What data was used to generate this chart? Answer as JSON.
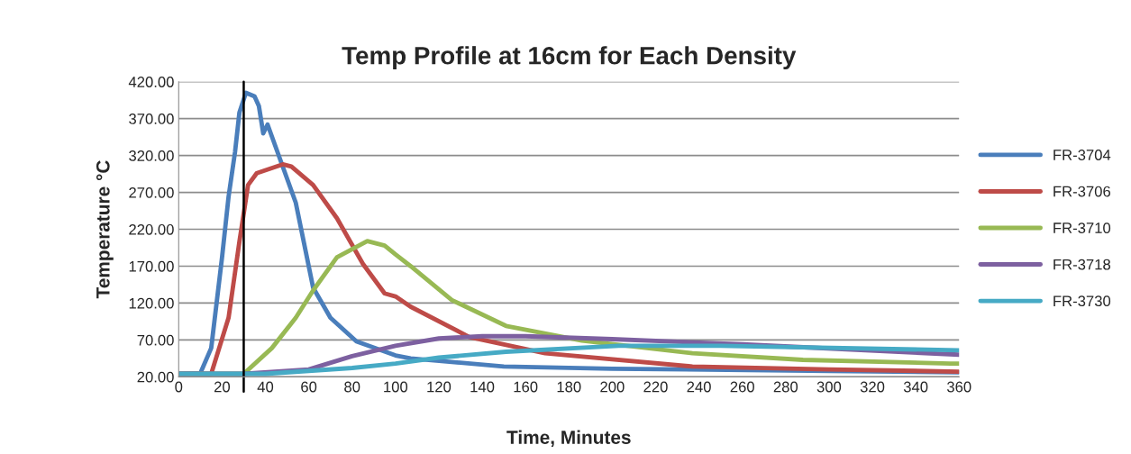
{
  "chart_data": {
    "type": "line",
    "title": "Temp Profile at 16cm for Each Density",
    "xlabel": "Time, Minutes",
    "ylabel": "Temperature °C",
    "xlim": [
      0,
      360
    ],
    "xticks": [
      0,
      20,
      40,
      60,
      80,
      100,
      120,
      140,
      160,
      180,
      200,
      220,
      240,
      260,
      280,
      300,
      320,
      340,
      360
    ],
    "ylim": [
      20,
      420
    ],
    "yticks": [
      {
        "value": 20,
        "label": "20.00"
      },
      {
        "value": 70,
        "label": "70.00"
      },
      {
        "value": 120,
        "label": "120.00"
      },
      {
        "value": 170,
        "label": "170.00"
      },
      {
        "value": 220,
        "label": "220.00"
      },
      {
        "value": 270,
        "label": "270.00"
      },
      {
        "value": 320,
        "label": "320.00"
      },
      {
        "value": 370,
        "label": "370.00"
      },
      {
        "value": 420,
        "label": "420.00"
      }
    ],
    "grid": "y",
    "legend": "right",
    "marker": "none",
    "line_style": "solid",
    "ref_lines": [
      {
        "axis": "x",
        "value": 30,
        "color": "#000000"
      }
    ],
    "series": [
      {
        "name": "FR-3704",
        "color": "#4a7ebb",
        "x": [
          0,
          10,
          15,
          20,
          23,
          26,
          28,
          31,
          35,
          37,
          39,
          41,
          54,
          62,
          70,
          82,
          100,
          107,
          150,
          200,
          300,
          360
        ],
        "values": [
          24,
          25,
          59,
          182,
          264,
          325,
          378,
          405,
          400,
          387,
          350,
          362,
          256,
          141,
          100,
          68,
          49,
          45,
          34,
          31,
          28,
          26
        ]
      },
      {
        "name": "FR-3706",
        "color": "#be4b48",
        "x": [
          0,
          15,
          23,
          28,
          32,
          36,
          48,
          52,
          62,
          73,
          85,
          95,
          100,
          107,
          134,
          169,
          237,
          300,
          360
        ],
        "values": [
          24,
          24,
          100,
          203,
          280,
          296,
          308,
          305,
          280,
          235,
          173,
          133,
          129,
          115,
          74,
          52,
          34,
          30,
          27
        ]
      },
      {
        "name": "FR-3710",
        "color": "#98b954",
        "x": [
          0,
          30,
          43,
          54,
          62,
          73,
          87,
          95,
          100,
          107,
          126,
          151,
          186,
          237,
          288,
          356,
          360
        ],
        "values": [
          24,
          24,
          59,
          100,
          137,
          182,
          204,
          198,
          186,
          170,
          124,
          89,
          69,
          52,
          43,
          38,
          38
        ]
      },
      {
        "name": "FR-3718",
        "color": "#7d60a0",
        "x": [
          0,
          30,
          60,
          80,
          100,
          120,
          140,
          160,
          200,
          260,
          360
        ],
        "values": [
          24,
          24,
          30,
          48,
          62,
          72,
          75,
          75,
          71,
          64,
          50
        ]
      },
      {
        "name": "FR-3730",
        "color": "#46aac5",
        "x": [
          0,
          40,
          80,
          100,
          120,
          151,
          203,
          250,
          360
        ],
        "values": [
          24,
          24,
          32,
          38,
          46,
          54,
          62,
          62,
          56
        ]
      }
    ]
  }
}
